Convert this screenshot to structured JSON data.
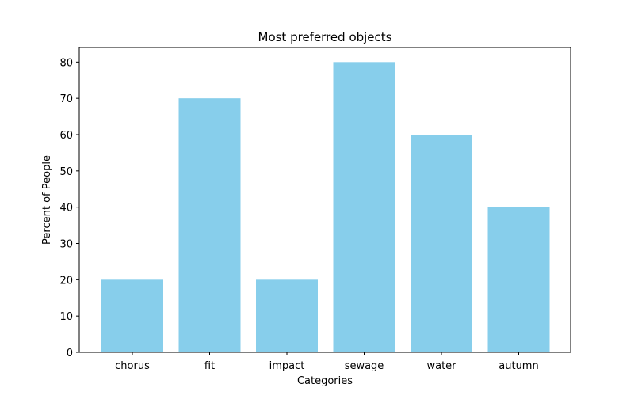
{
  "chart_data": {
    "type": "bar",
    "title": "Most preferred objects",
    "xlabel": "Categories",
    "ylabel": "Percent of People",
    "categories": [
      "chorus",
      "fit",
      "impact",
      "sewage",
      "water",
      "autumn"
    ],
    "values": [
      20,
      70,
      20,
      80,
      60,
      40
    ],
    "ylim": [
      0,
      84
    ],
    "yticks": [
      0,
      10,
      20,
      30,
      40,
      50,
      60,
      70,
      80
    ],
    "grid": false,
    "legend": "none",
    "bar_color": "#87ceeb"
  }
}
